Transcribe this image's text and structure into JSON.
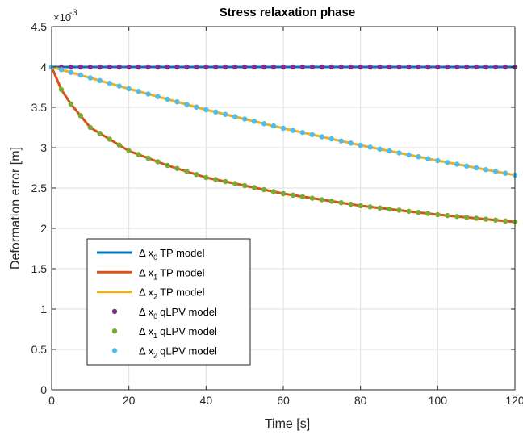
{
  "chart_data": {
    "type": "line",
    "title": "Stress relaxation phase",
    "xlabel": "Time [s]",
    "ylabel": "Deformation error [m]",
    "y_exponent_label": "×10",
    "y_exponent": "-3",
    "xlim": [
      0,
      120
    ],
    "ylim": [
      0,
      4.5
    ],
    "x_ticks": [
      "0",
      "20",
      "40",
      "60",
      "80",
      "100",
      "120"
    ],
    "y_ticks": [
      "0",
      "0.5",
      "1",
      "1.5",
      "2",
      "2.5",
      "3",
      "3.5",
      "4",
      "4.5"
    ],
    "grid": true,
    "legend_position": "lower-left",
    "legend_symbol": "Δ x",
    "series": [
      {
        "name_prefix": "Δ x",
        "subscript": "0",
        "name_suffix": "TP model",
        "kind": "line",
        "color": "#0072BD",
        "x_step": 2.5,
        "points": [
          [
            0,
            4.0
          ],
          [
            120,
            4.0
          ]
        ]
      },
      {
        "name_prefix": "Δ x",
        "subscript": "1",
        "name_suffix": "TP model",
        "kind": "line",
        "color": "#D95319",
        "x_step": 2.5,
        "points": [
          [
            0,
            4.0
          ],
          [
            2.5,
            3.72
          ],
          [
            5,
            3.54
          ],
          [
            10,
            3.25
          ],
          [
            20,
            2.96
          ],
          [
            30,
            2.78
          ],
          [
            40,
            2.63
          ],
          [
            60,
            2.43
          ],
          [
            80,
            2.28
          ],
          [
            100,
            2.17
          ],
          [
            120,
            2.08
          ]
        ]
      },
      {
        "name_prefix": "Δ x",
        "subscript": "2",
        "name_suffix": "TP model",
        "kind": "line",
        "color": "#EDB120",
        "x_step": 2.5,
        "points": [
          [
            0,
            4.0
          ],
          [
            20,
            3.73
          ],
          [
            40,
            3.47
          ],
          [
            60,
            3.24
          ],
          [
            80,
            3.03
          ],
          [
            100,
            2.84
          ],
          [
            120,
            2.66
          ]
        ]
      },
      {
        "name_prefix": "Δ x",
        "subscript": "0",
        "name_suffix": "qLPV model",
        "kind": "marker",
        "color": "#7E2F8E",
        "x_step": 2.5,
        "points": [
          [
            0,
            4.0
          ],
          [
            120,
            4.0
          ]
        ]
      },
      {
        "name_prefix": "Δ x",
        "subscript": "1",
        "name_suffix": "qLPV model",
        "kind": "marker",
        "color": "#77AC30",
        "x_step": 2.5,
        "points": [
          [
            0,
            4.0
          ],
          [
            2.5,
            3.72
          ],
          [
            5,
            3.54
          ],
          [
            10,
            3.25
          ],
          [
            20,
            2.96
          ],
          [
            30,
            2.78
          ],
          [
            40,
            2.63
          ],
          [
            60,
            2.43
          ],
          [
            80,
            2.28
          ],
          [
            100,
            2.17
          ],
          [
            120,
            2.08
          ]
        ]
      },
      {
        "name_prefix": "Δ x",
        "subscript": "2",
        "name_suffix": "qLPV model",
        "kind": "marker",
        "color": "#4DBEEE",
        "x_step": 2.5,
        "points": [
          [
            0,
            4.0
          ],
          [
            20,
            3.73
          ],
          [
            40,
            3.47
          ],
          [
            60,
            3.24
          ],
          [
            80,
            3.03
          ],
          [
            100,
            2.84
          ],
          [
            120,
            2.66
          ]
        ]
      }
    ]
  }
}
